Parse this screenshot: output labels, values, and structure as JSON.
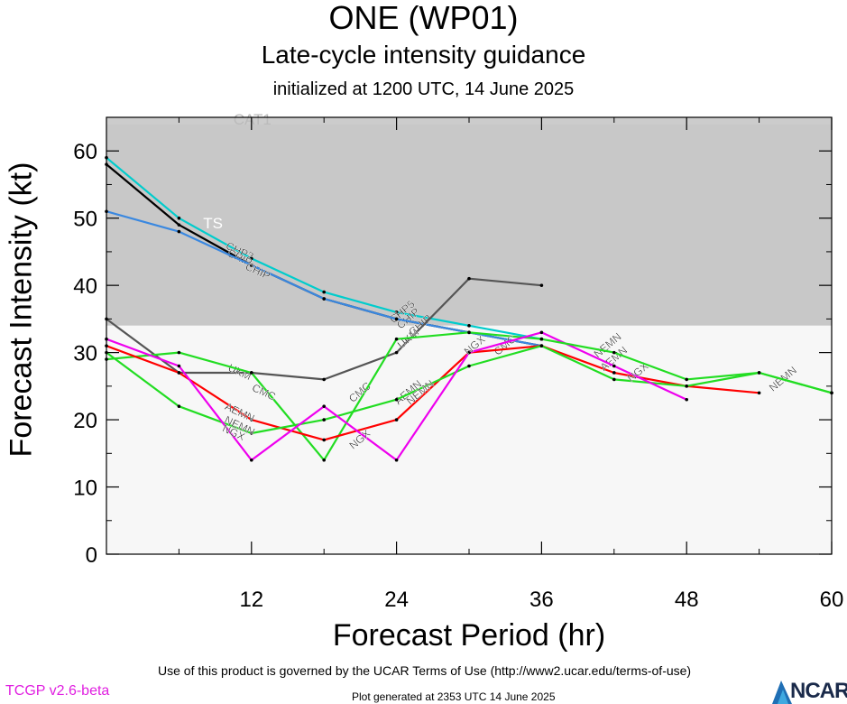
{
  "header": {
    "title": "ONE (WP01)",
    "subtitle": "Late-cycle intensity guidance",
    "init": "initialized at 1200 UTC, 14 June 2025"
  },
  "footer": {
    "terms": "Use of this product is governed by the UCAR Terms of Use (http://www2.ucar.edu/terms-of-use)",
    "version": "TCGP v2.6-beta",
    "generated": "Plot generated at 2353 UTC   14 June 2025",
    "logo": "NCAR"
  },
  "chart_data": {
    "type": "line",
    "xlabel": "Forecast Period (hr)",
    "ylabel": "Forecast Intensity (kt)",
    "xlim": [
      0,
      60
    ],
    "ylim": [
      0,
      65
    ],
    "xticks": [
      "12",
      "24",
      "36",
      "48",
      "60"
    ],
    "yticks": [
      "0",
      "10",
      "20",
      "30",
      "40",
      "50",
      "60"
    ],
    "bands": [
      {
        "label": "CAT1",
        "from": 64,
        "to": 65,
        "color": "#cccccc",
        "label_color": "#bbbbbb"
      },
      {
        "label": "TS",
        "from": 34,
        "to": 64,
        "color": "#c8c8c8",
        "label_color": "#ffffff"
      },
      {
        "label": "",
        "from": 0,
        "to": 34,
        "color": "#f7f7f7",
        "label_color": "#000000"
      }
    ],
    "series": [
      {
        "color": "#00cccc",
        "x": [
          0,
          6,
          12,
          18,
          24,
          30,
          36
        ],
        "y": [
          59,
          50,
          44,
          39,
          36,
          34,
          32
        ],
        "labels": [
          {
            "text": "CHP2",
            "x": 11,
            "y": 45
          },
          {
            "text": "CHP5",
            "x": 24.5,
            "y": 36
          }
        ]
      },
      {
        "color": "#000000",
        "x": [
          0,
          6,
          12,
          18,
          24,
          30,
          36
        ],
        "y": [
          58,
          49,
          43,
          38,
          35,
          33,
          31
        ],
        "labels": [
          {
            "text": "CHIP",
            "x": 11,
            "y": 44
          },
          {
            "text": "CHIP",
            "x": 25,
            "y": 35
          }
        ]
      },
      {
        "color": "#3a88e0",
        "x": [
          0,
          6,
          12,
          18,
          24,
          30,
          36
        ],
        "y": [
          51,
          48,
          43,
          38,
          35,
          33,
          31
        ],
        "labels": [
          {
            "text": "CHIP",
            "x": 12.5,
            "y": 42
          },
          {
            "text": "CHIP",
            "x": 26,
            "y": 34
          }
        ]
      },
      {
        "color": "#555555",
        "x": [
          0,
          6,
          12,
          18,
          24,
          30,
          36
        ],
        "y": [
          35,
          27,
          27,
          26,
          30,
          41,
          40
        ],
        "labels": [
          {
            "text": "UKM",
            "x": 11,
            "y": 27
          },
          {
            "text": "UKM",
            "x": 25,
            "y": 32
          }
        ]
      },
      {
        "color": "#22dd22",
        "x": [
          0,
          6,
          12,
          18,
          24,
          30,
          36
        ],
        "y": [
          29,
          30,
          27,
          14,
          32,
          33,
          32
        ],
        "labels": [
          {
            "text": "CMC",
            "x": 13,
            "y": 24
          },
          {
            "text": "CMC",
            "x": 21,
            "y": 24
          },
          {
            "text": "CMC",
            "x": 33,
            "y": 31
          }
        ]
      },
      {
        "color": "#ff0000",
        "x": [
          0,
          6,
          12,
          18,
          24,
          30,
          36,
          42,
          48,
          54
        ],
        "y": [
          31,
          27,
          20,
          17,
          20,
          30,
          31,
          27,
          25,
          24
        ],
        "labels": [
          {
            "text": "AEMN",
            "x": 11,
            "y": 21
          },
          {
            "text": "AEMN",
            "x": 25,
            "y": 24
          }
        ]
      },
      {
        "color": "#22dd22",
        "x": [
          0,
          6,
          12,
          18,
          24,
          30,
          36,
          42,
          48,
          54,
          60
        ],
        "y": [
          30,
          22,
          18,
          20,
          23,
          28,
          31,
          26,
          25,
          27,
          24
        ],
        "labels": [
          {
            "text": "NEMN",
            "x": 11,
            "y": 19
          },
          {
            "text": "NEMN",
            "x": 26,
            "y": 24
          },
          {
            "text": "AEMN",
            "x": 42,
            "y": 29
          },
          {
            "text": "NEMN",
            "x": 56,
            "y": 26
          }
        ]
      },
      {
        "color": "#ee00ee",
        "x": [
          0,
          6,
          12,
          18,
          24,
          30,
          36,
          42,
          48
        ],
        "y": [
          32,
          28,
          14,
          22,
          14,
          30,
          33,
          28,
          23
        ],
        "labels": [
          {
            "text": "NGX",
            "x": 10.5,
            "y": 18
          },
          {
            "text": "NGX",
            "x": 21,
            "y": 17
          },
          {
            "text": "NGX",
            "x": 30.5,
            "y": 31
          },
          {
            "text": "NEMN",
            "x": 41.5,
            "y": 31
          },
          {
            "text": "NGX",
            "x": 44,
            "y": 27
          }
        ]
      },
      {
        "color": "#22dd22",
        "x": [
          36,
          42,
          48,
          54,
          60
        ],
        "y": [
          32,
          30,
          26,
          27,
          24
        ],
        "labels": []
      }
    ]
  }
}
